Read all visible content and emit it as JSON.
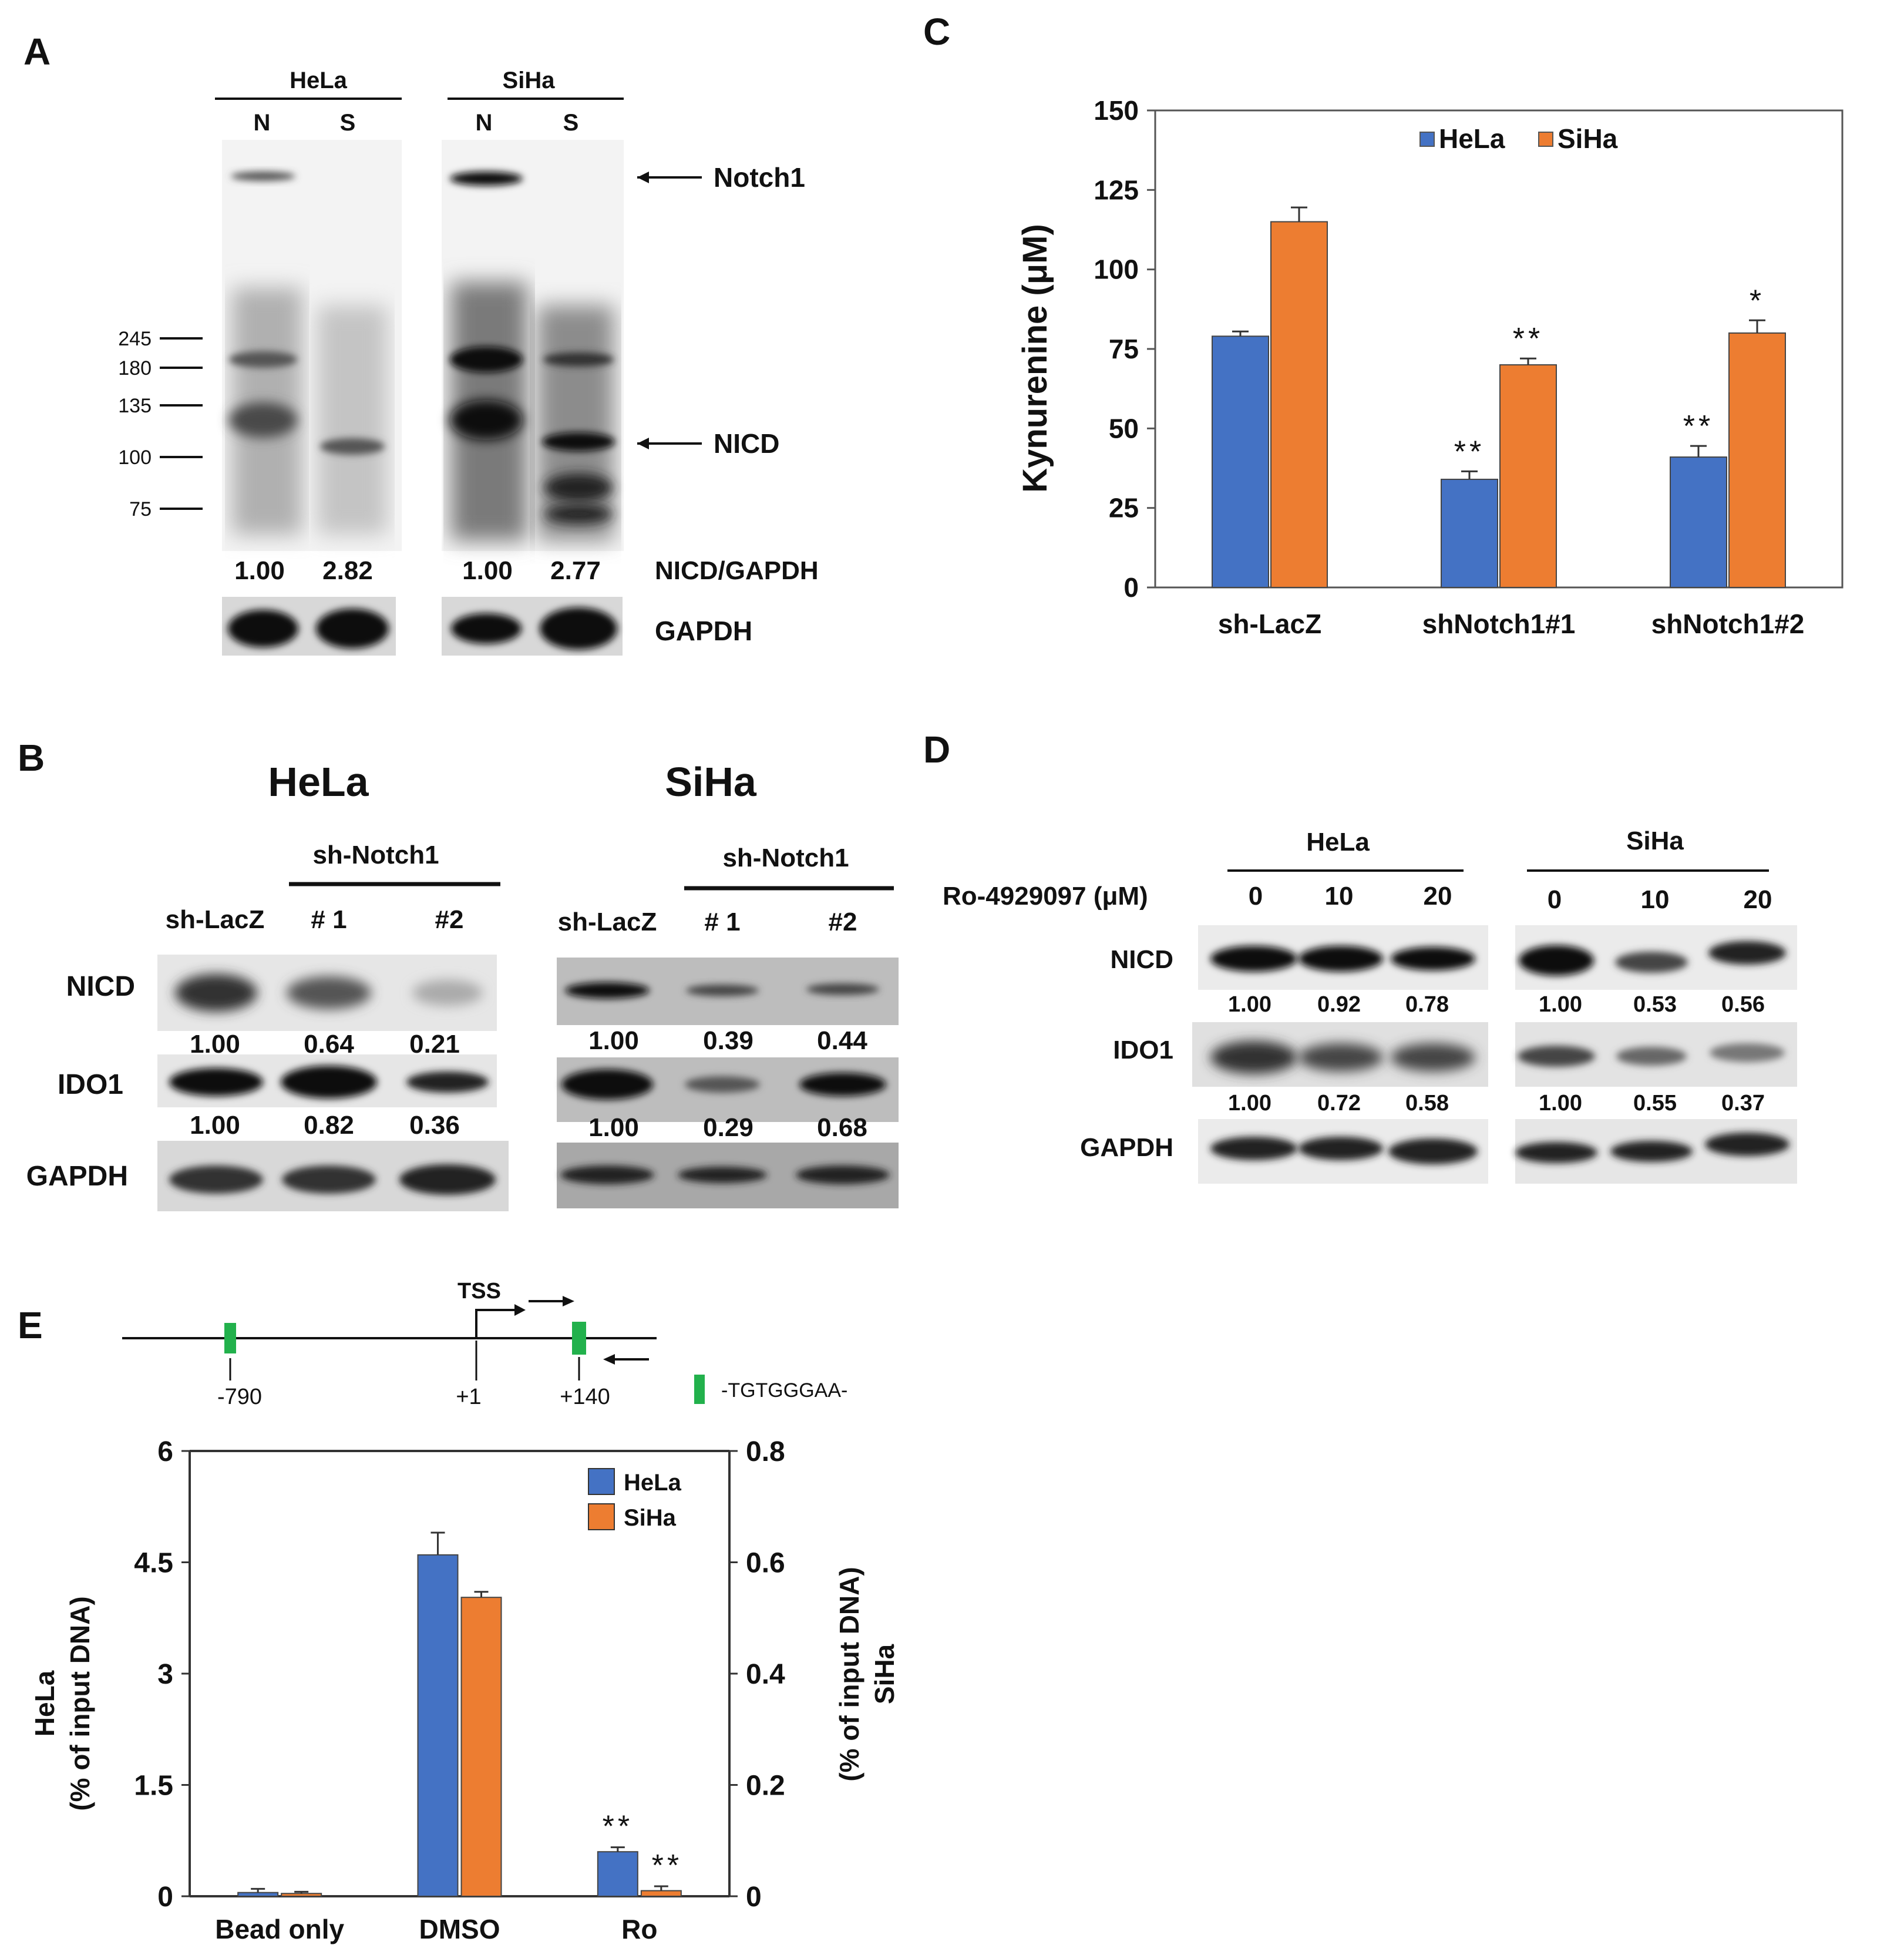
{
  "colors": {
    "hela": "#4472c4",
    "siha": "#ed7d31",
    "motif": "#22b14c",
    "axis": "#555555",
    "ink": "#111111"
  },
  "panels": {
    "A": {
      "letter": "A",
      "groups": [
        {
          "name": "HeLa",
          "lanes": [
            "N",
            "S"
          ],
          "ratios": [
            "1.00",
            "2.82"
          ]
        },
        {
          "name": "SiHa",
          "lanes": [
            "N",
            "S"
          ],
          "ratios": [
            "1.00",
            "2.77"
          ]
        }
      ],
      "markers": [
        "245",
        "180",
        "135",
        "100",
        "75"
      ],
      "labels": {
        "notch1": "Notch1",
        "nicd": "NICD",
        "ratio": "NICD/GAPDH",
        "gapdh": "GAPDH"
      }
    },
    "B": {
      "letter": "B",
      "groups": [
        {
          "name": "HeLa",
          "sh_header": "sh-Notch1",
          "lanes": [
            "sh-LacZ",
            "# 1",
            "#2"
          ],
          "nicd": [
            "1.00",
            "0.64",
            "0.21"
          ],
          "ido1": [
            "1.00",
            "0.82",
            "0.36"
          ]
        },
        {
          "name": "SiHa",
          "sh_header": "sh-Notch1",
          "lanes": [
            "sh-LacZ",
            "# 1",
            "#2"
          ],
          "nicd": [
            "1.00",
            "0.39",
            "0.44"
          ],
          "ido1": [
            "1.00",
            "0.29",
            "0.68"
          ]
        }
      ],
      "rows": [
        "NICD",
        "IDO1",
        "GAPDH"
      ]
    },
    "D": {
      "letter": "D",
      "treatment_label": "Ro-4929097 (μM)",
      "groups": [
        {
          "name": "HeLa",
          "doses": [
            "0",
            "10",
            "20"
          ],
          "nicd": [
            "1.00",
            "0.92",
            "0.78"
          ],
          "ido1": [
            "1.00",
            "0.72",
            "0.58"
          ]
        },
        {
          "name": "SiHa",
          "doses": [
            "0",
            "10",
            "20"
          ],
          "nicd": [
            "1.00",
            "0.53",
            "0.56"
          ],
          "ido1": [
            "1.00",
            "0.55",
            "0.37"
          ]
        }
      ],
      "rows": [
        "NICD",
        "IDO1",
        "GAPDH"
      ]
    },
    "E_diagram": {
      "letter": "E",
      "tss": "TSS",
      "positions": [
        "-790",
        "+1",
        "+140"
      ],
      "motif_legend": "-TGTGGGAA-"
    }
  },
  "chart_data": [
    {
      "panel": "C",
      "letter": "C",
      "type": "bar",
      "categories": [
        "sh-LacZ",
        "shNotch1#1",
        "shNotch1#2"
      ],
      "ylabel": "Kynurenine (μM)",
      "ylim": [
        0,
        150
      ],
      "yticks": [
        "0",
        "25",
        "50",
        "75",
        "100",
        "125",
        "150"
      ],
      "legend_position": "top-center",
      "series": [
        {
          "name": "HeLa",
          "values": [
            79,
            34,
            41
          ],
          "errors": [
            1.5,
            2.5,
            3.5
          ],
          "sig": [
            "",
            "**",
            "**"
          ]
        },
        {
          "name": "SiHa",
          "values": [
            115,
            70,
            80
          ],
          "errors": [
            4.5,
            2,
            4
          ],
          "sig": [
            "",
            "**",
            "*"
          ]
        }
      ]
    },
    {
      "panel": "E",
      "type": "bar",
      "categories": [
        "Bead only",
        "DMSO",
        "Ro"
      ],
      "ylabel_left": [
        "HeLa",
        "(% of input DNA)"
      ],
      "ylabel_right": [
        "(% of input DNA)",
        "SiHa"
      ],
      "ylim_left": [
        0,
        6
      ],
      "ylim_right": [
        0,
        0.8
      ],
      "yticks_left": [
        "0",
        "1.5",
        "3",
        "4.5",
        "6"
      ],
      "yticks_right": [
        "0",
        "0.2",
        "0.4",
        "0.6",
        "0.8"
      ],
      "legend_position": "top-right",
      "series": [
        {
          "name": "HeLa",
          "axis": "left",
          "values": [
            0.05,
            4.6,
            0.6
          ],
          "errors": [
            0.05,
            0.3,
            0.06
          ],
          "sig": [
            "",
            "",
            "**"
          ]
        },
        {
          "name": "SiHa",
          "axis": "right",
          "values": [
            0.005,
            0.537,
            0.01
          ],
          "errors": [
            0.003,
            0.01,
            0.008
          ],
          "sig": [
            "",
            "",
            "**"
          ]
        }
      ]
    }
  ]
}
